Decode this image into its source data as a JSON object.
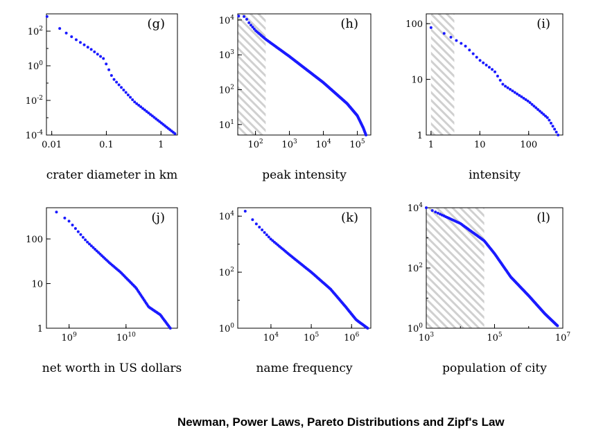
{
  "caption": "Newman, Power Laws, Pareto Distributions and Zipf's Law",
  "colors": {
    "points": "#1a1aff",
    "shade": "#c8c8c8"
  },
  "chart_data": [
    {
      "type": "scatter",
      "panel": "(g)",
      "xlabel": "crater diameter in km",
      "xscale": "log",
      "yscale": "log",
      "xlim": [
        0.008,
        2.0
      ],
      "ylim": [
        0.0001,
        1000
      ],
      "xticks": [
        {
          "v": 0.01,
          "b": "0.01"
        },
        {
          "v": 0.1,
          "b": "0.1"
        },
        {
          "v": 1,
          "b": "1"
        }
      ],
      "yticks": [
        {
          "v": 0.0001,
          "b": "10",
          "e": "-4"
        },
        {
          "v": 0.01,
          "b": "10",
          "e": "-2"
        },
        {
          "v": 1,
          "b": "10",
          "e": "0"
        },
        {
          "v": 100,
          "b": "10",
          "e": "2"
        }
      ],
      "shade": null,
      "anchors": [
        [
          0.0082,
          700
        ],
        [
          0.0086,
          550
        ],
        [
          0.012,
          200
        ],
        [
          0.025,
          40
        ],
        [
          0.05,
          10
        ],
        [
          0.09,
          2.5
        ],
        [
          0.13,
          0.2
        ],
        [
          0.33,
          0.008
        ],
        [
          1.8,
          0.00012
        ]
      ],
      "n": 48
    },
    {
      "type": "scatter",
      "panel": "(h)",
      "xlabel": "peak intensity",
      "xscale": "log",
      "yscale": "log",
      "xlim": [
        30,
        250000
      ],
      "ylim": [
        5,
        15000
      ],
      "xticks": [
        {
          "v": 100,
          "b": "10",
          "e": "2"
        },
        {
          "v": 1000,
          "b": "10",
          "e": "3"
        },
        {
          "v": 10000,
          "b": "10",
          "e": "4"
        },
        {
          "v": 100000,
          "b": "10",
          "e": "5"
        }
      ],
      "yticks": [
        {
          "v": 10,
          "b": "10",
          "e": "1"
        },
        {
          "v": 100,
          "b": "10",
          "e": "2"
        },
        {
          "v": 1000,
          "b": "10",
          "e": "3"
        },
        {
          "v": 10000,
          "b": "10",
          "e": "4"
        }
      ],
      "shade": [
        30,
        200
      ],
      "anchors": [
        [
          32,
          13000
        ],
        [
          50,
          12500
        ],
        [
          60,
          9000
        ],
        [
          100,
          5000
        ],
        [
          200,
          2800
        ],
        [
          1000,
          900
        ],
        [
          10000,
          160
        ],
        [
          50000,
          40
        ],
        [
          100000,
          18
        ],
        [
          150000,
          8
        ],
        [
          180000,
          5
        ]
      ],
      "n": 200
    },
    {
      "type": "scatter",
      "panel": "(i)",
      "xlabel": "intensity",
      "xscale": "log",
      "yscale": "log",
      "xlim": [
        0.8,
        500
      ],
      "ylim": [
        1,
        150
      ],
      "xticks": [
        {
          "v": 1,
          "b": "1"
        },
        {
          "v": 10,
          "b": "10"
        },
        {
          "v": 100,
          "b": "100"
        }
      ],
      "yticks": [
        {
          "v": 1,
          "b": "1"
        },
        {
          "v": 10,
          "b": "10"
        },
        {
          "v": 100,
          "b": "100"
        }
      ],
      "shade": [
        1,
        3
      ],
      "anchors": [
        [
          1,
          85
        ],
        [
          2,
          65
        ],
        [
          5,
          40
        ],
        [
          10,
          22
        ],
        [
          20,
          14
        ],
        [
          30,
          8
        ],
        [
          100,
          4
        ],
        [
          250,
          2
        ],
        [
          400,
          1
        ]
      ],
      "n": 45
    },
    {
      "type": "scatter",
      "panel": "(j)",
      "xlabel": "net worth in US dollars",
      "xscale": "log",
      "yscale": "log",
      "xlim": [
        400000000,
        80000000000
      ],
      "ylim": [
        1,
        500
      ],
      "xticks": [
        {
          "v": 1000000000,
          "b": "10",
          "e": "9"
        },
        {
          "v": 10000000000,
          "b": "10",
          "e": "10"
        }
      ],
      "yticks": [
        {
          "v": 1,
          "b": "1"
        },
        {
          "v": 10,
          "b": "10"
        },
        {
          "v": 100,
          "b": "100"
        }
      ],
      "shade": null,
      "anchors": [
        [
          600000000,
          400
        ],
        [
          1000000000,
          250
        ],
        [
          2000000000,
          90
        ],
        [
          5000000000,
          30
        ],
        [
          8000000000,
          18
        ],
        [
          15000000000,
          8
        ],
        [
          25000000000,
          3
        ],
        [
          40000000000,
          2
        ],
        [
          60000000000,
          1
        ]
      ],
      "n": 80
    },
    {
      "type": "scatter",
      "panel": "(k)",
      "xlabel": "name frequency",
      "xscale": "log",
      "yscale": "log",
      "xlim": [
        1500,
        3000000
      ],
      "ylim": [
        1,
        20000
      ],
      "xticks": [
        {
          "v": 10000,
          "b": "10",
          "e": "4"
        },
        {
          "v": 100000,
          "b": "10",
          "e": "5"
        },
        {
          "v": 1000000,
          "b": "10",
          "e": "6"
        }
      ],
      "yticks": [
        {
          "v": 1,
          "b": "10",
          "e": "0"
        },
        {
          "v": 100,
          "b": "10",
          "e": "2"
        },
        {
          "v": 10000,
          "b": "10",
          "e": "4"
        }
      ],
      "shade": null,
      "anchors": [
        [
          2300,
          15000
        ],
        [
          4000,
          6000
        ],
        [
          10000,
          1500
        ],
        [
          30000,
          400
        ],
        [
          100000,
          100
        ],
        [
          300000,
          25
        ],
        [
          700000,
          6
        ],
        [
          1300000,
          2
        ],
        [
          2500000,
          1
        ]
      ],
      "n": 110
    },
    {
      "type": "scatter",
      "panel": "(l)",
      "xlabel": "population of city",
      "xscale": "log",
      "yscale": "log",
      "xlim": [
        1000,
        10000000
      ],
      "ylim": [
        1,
        10000
      ],
      "xticks": [
        {
          "v": 1000,
          "b": "10",
          "e": "3"
        },
        {
          "v": 100000,
          "b": "10",
          "e": "5"
        },
        {
          "v": 10000000,
          "b": "10",
          "e": "7"
        }
      ],
      "yticks": [
        {
          "v": 1,
          "b": "10",
          "e": "0"
        },
        {
          "v": 100,
          "b": "10",
          "e": "2"
        },
        {
          "v": 10000,
          "b": "10",
          "e": "4"
        }
      ],
      "shade": [
        1000,
        50000
      ],
      "anchors": [
        [
          1000,
          10000
        ],
        [
          10000,
          3000
        ],
        [
          50000,
          800
        ],
        [
          100000,
          300
        ],
        [
          300000,
          50
        ],
        [
          1000000,
          12
        ],
        [
          3000000,
          3
        ],
        [
          7000000,
          1.2
        ]
      ],
      "n": 170
    }
  ]
}
